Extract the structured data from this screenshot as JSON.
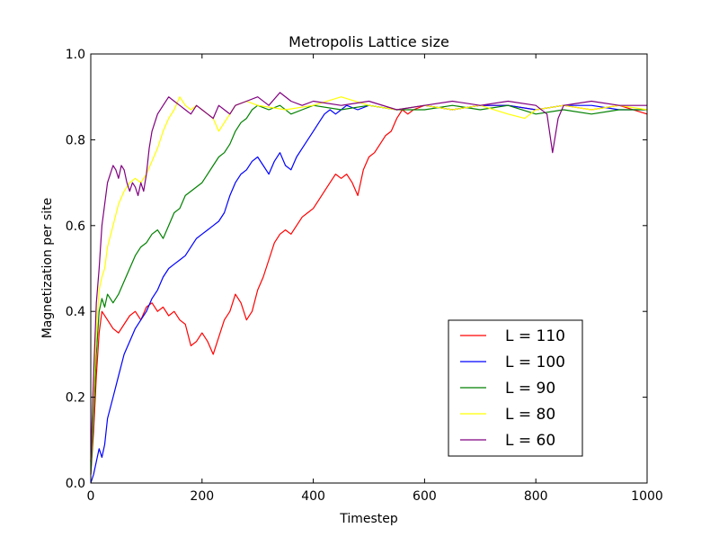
{
  "chart_data": {
    "type": "line",
    "title": "Metropolis Lattice size",
    "xlabel": "Timestep",
    "ylabel": "Magnetization per site",
    "xlim": [
      0,
      1000
    ],
    "ylim": [
      0.0,
      1.0
    ],
    "xticks": [
      0,
      200,
      400,
      600,
      800,
      1000
    ],
    "xtick_labels": [
      "0",
      "200",
      "400",
      "600",
      "800",
      "1000"
    ],
    "yticks": [
      0.0,
      0.2,
      0.4,
      0.6,
      0.8,
      1.0
    ],
    "ytick_labels": [
      "0.0",
      "0.2",
      "0.4",
      "0.6",
      "0.8",
      "1.0"
    ],
    "grid": false,
    "legend_position": "lower-right",
    "series": [
      {
        "name": "L = 110",
        "color": "#ff0000",
        "x": [
          0,
          5,
          10,
          15,
          20,
          30,
          40,
          50,
          60,
          70,
          80,
          90,
          100,
          110,
          120,
          130,
          140,
          150,
          160,
          170,
          180,
          190,
          200,
          210,
          220,
          230,
          240,
          250,
          260,
          270,
          280,
          290,
          300,
          310,
          320,
          330,
          340,
          350,
          360,
          370,
          380,
          390,
          400,
          410,
          420,
          430,
          440,
          450,
          460,
          470,
          480,
          490,
          500,
          510,
          520,
          530,
          540,
          550,
          560,
          570,
          580,
          600,
          650,
          700,
          750,
          800,
          850,
          900,
          950,
          1000
        ],
        "values": [
          0.02,
          0.12,
          0.25,
          0.35,
          0.4,
          0.38,
          0.36,
          0.35,
          0.37,
          0.39,
          0.4,
          0.38,
          0.41,
          0.42,
          0.4,
          0.41,
          0.39,
          0.4,
          0.38,
          0.37,
          0.32,
          0.33,
          0.35,
          0.33,
          0.3,
          0.34,
          0.38,
          0.4,
          0.44,
          0.42,
          0.38,
          0.4,
          0.45,
          0.48,
          0.52,
          0.56,
          0.58,
          0.59,
          0.58,
          0.6,
          0.62,
          0.63,
          0.64,
          0.66,
          0.68,
          0.7,
          0.72,
          0.71,
          0.72,
          0.7,
          0.67,
          0.73,
          0.76,
          0.77,
          0.79,
          0.81,
          0.82,
          0.85,
          0.87,
          0.86,
          0.87,
          0.88,
          0.87,
          0.88,
          0.88,
          0.87,
          0.88,
          0.87,
          0.88,
          0.86
        ]
      },
      {
        "name": "L = 100",
        "color": "#0000ff",
        "x": [
          0,
          5,
          10,
          15,
          20,
          25,
          30,
          40,
          50,
          60,
          70,
          80,
          90,
          100,
          110,
          120,
          130,
          140,
          150,
          160,
          170,
          180,
          190,
          200,
          210,
          220,
          230,
          240,
          250,
          260,
          270,
          280,
          290,
          300,
          310,
          320,
          330,
          340,
          350,
          360,
          370,
          380,
          390,
          400,
          410,
          420,
          430,
          440,
          450,
          460,
          480,
          500,
          550,
          600,
          650,
          700,
          750,
          800,
          850,
          900,
          950,
          1000
        ],
        "values": [
          0.0,
          0.02,
          0.05,
          0.08,
          0.06,
          0.09,
          0.15,
          0.2,
          0.25,
          0.3,
          0.33,
          0.36,
          0.38,
          0.4,
          0.43,
          0.45,
          0.48,
          0.5,
          0.51,
          0.52,
          0.53,
          0.55,
          0.57,
          0.58,
          0.59,
          0.6,
          0.61,
          0.63,
          0.67,
          0.7,
          0.72,
          0.73,
          0.75,
          0.76,
          0.74,
          0.72,
          0.75,
          0.77,
          0.74,
          0.73,
          0.76,
          0.78,
          0.8,
          0.82,
          0.84,
          0.86,
          0.87,
          0.86,
          0.87,
          0.88,
          0.87,
          0.88,
          0.87,
          0.88,
          0.87,
          0.88,
          0.88,
          0.87,
          0.88,
          0.88,
          0.87,
          0.87
        ]
      },
      {
        "name": "L = 90",
        "color": "#008000",
        "x": [
          0,
          5,
          10,
          15,
          20,
          25,
          30,
          40,
          50,
          60,
          70,
          80,
          90,
          100,
          110,
          120,
          130,
          140,
          150,
          160,
          170,
          180,
          190,
          200,
          210,
          220,
          230,
          240,
          250,
          260,
          270,
          280,
          290,
          300,
          320,
          340,
          360,
          380,
          400,
          450,
          500,
          550,
          600,
          650,
          700,
          750,
          800,
          850,
          900,
          950,
          1000
        ],
        "values": [
          0.02,
          0.15,
          0.3,
          0.4,
          0.43,
          0.41,
          0.44,
          0.42,
          0.44,
          0.47,
          0.5,
          0.53,
          0.55,
          0.56,
          0.58,
          0.59,
          0.57,
          0.6,
          0.63,
          0.64,
          0.67,
          0.68,
          0.69,
          0.7,
          0.72,
          0.74,
          0.76,
          0.77,
          0.79,
          0.82,
          0.84,
          0.85,
          0.87,
          0.88,
          0.87,
          0.88,
          0.86,
          0.87,
          0.88,
          0.87,
          0.88,
          0.87,
          0.87,
          0.88,
          0.87,
          0.88,
          0.86,
          0.87,
          0.86,
          0.87,
          0.87
        ]
      },
      {
        "name": "L = 80",
        "color": "#ffff00",
        "x": [
          0,
          5,
          10,
          15,
          20,
          25,
          30,
          40,
          50,
          60,
          70,
          80,
          90,
          100,
          110,
          120,
          130,
          140,
          150,
          160,
          170,
          180,
          190,
          200,
          210,
          220,
          230,
          240,
          250,
          260,
          280,
          300,
          350,
          400,
          450,
          500,
          550,
          600,
          650,
          700,
          750,
          780,
          800,
          850,
          900,
          950,
          1000
        ],
        "values": [
          0.05,
          0.2,
          0.35,
          0.45,
          0.48,
          0.5,
          0.55,
          0.6,
          0.65,
          0.68,
          0.7,
          0.71,
          0.7,
          0.72,
          0.75,
          0.78,
          0.82,
          0.85,
          0.87,
          0.9,
          0.88,
          0.87,
          0.88,
          0.87,
          0.86,
          0.85,
          0.82,
          0.84,
          0.86,
          0.88,
          0.89,
          0.88,
          0.87,
          0.88,
          0.9,
          0.88,
          0.87,
          0.88,
          0.87,
          0.88,
          0.86,
          0.85,
          0.87,
          0.88,
          0.87,
          0.88,
          0.87
        ]
      },
      {
        "name": "L = 60",
        "color": "#800080",
        "x": [
          0,
          5,
          10,
          15,
          20,
          25,
          30,
          35,
          40,
          45,
          50,
          55,
          60,
          65,
          70,
          75,
          80,
          85,
          90,
          95,
          100,
          105,
          110,
          120,
          130,
          140,
          150,
          160,
          170,
          180,
          190,
          200,
          210,
          220,
          230,
          240,
          250,
          260,
          280,
          300,
          320,
          340,
          360,
          380,
          400,
          450,
          500,
          550,
          600,
          650,
          700,
          750,
          800,
          820,
          830,
          840,
          850,
          900,
          950,
          1000
        ],
        "values": [
          0.05,
          0.25,
          0.42,
          0.5,
          0.6,
          0.65,
          0.7,
          0.72,
          0.74,
          0.73,
          0.71,
          0.74,
          0.73,
          0.7,
          0.68,
          0.7,
          0.69,
          0.67,
          0.7,
          0.68,
          0.72,
          0.78,
          0.82,
          0.86,
          0.88,
          0.9,
          0.89,
          0.88,
          0.87,
          0.86,
          0.88,
          0.87,
          0.86,
          0.85,
          0.88,
          0.87,
          0.86,
          0.88,
          0.89,
          0.9,
          0.88,
          0.91,
          0.89,
          0.88,
          0.89,
          0.88,
          0.89,
          0.87,
          0.88,
          0.89,
          0.88,
          0.89,
          0.88,
          0.86,
          0.77,
          0.85,
          0.88,
          0.89,
          0.88,
          0.88
        ]
      }
    ]
  }
}
